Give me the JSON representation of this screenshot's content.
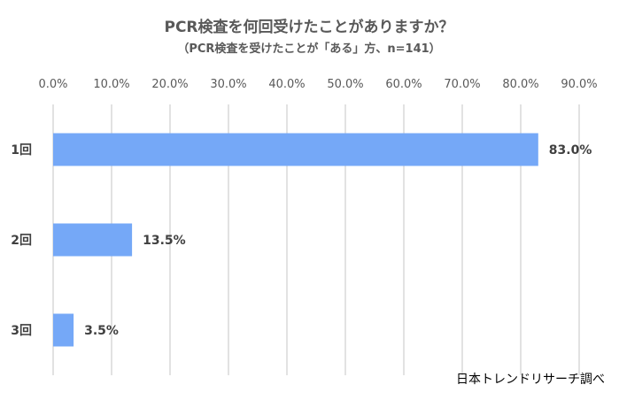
{
  "chart_data": {
    "type": "bar",
    "orientation": "horizontal",
    "title": "PCR検査を何回受けたことがありますか？",
    "subtitle": "（PCR検査を受けたことが「ある」方、n=141）",
    "categories": [
      "1回",
      "2回",
      "3回"
    ],
    "values": [
      83.0,
      13.5,
      3.5
    ],
    "data_labels": [
      "83.0%",
      "13.5%",
      "3.5%"
    ],
    "xlim": [
      0,
      90
    ],
    "x_ticks": [
      0,
      10,
      20,
      30,
      40,
      50,
      60,
      70,
      80,
      90
    ],
    "x_tick_labels": [
      "0.0%",
      "10.0%",
      "20.0%",
      "30.0%",
      "40.0%",
      "50.0%",
      "60.0%",
      "70.0%",
      "80.0%",
      "90.0%"
    ],
    "x_axis_position": "top",
    "grid": true,
    "legend": "none",
    "bar_color": "#75a8f7",
    "grid_color": "#d9d9d9",
    "source": "日本トレンドリサーチ調べ"
  }
}
